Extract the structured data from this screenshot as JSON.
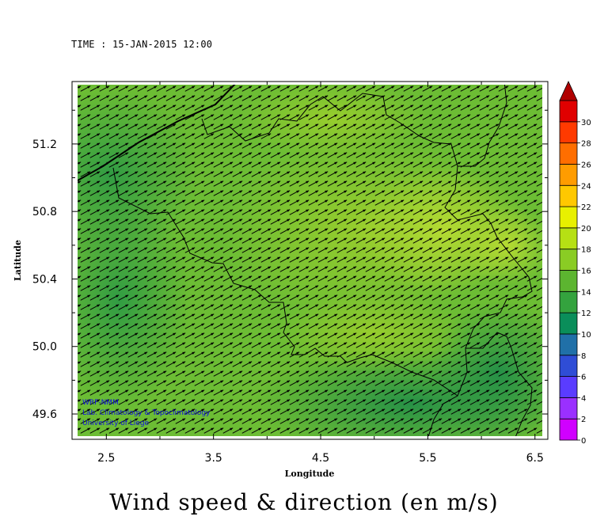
{
  "header": {
    "time_label": "TIME : 15-JAN-2015 12:00"
  },
  "footer": {
    "title": "Wind speed & direction (en m/s)"
  },
  "credits": {
    "line1": "WRF-NMM",
    "line2": "Lab. Climatology & Topoclimatology",
    "line3": "University of Liege"
  },
  "map": {
    "xlabel": "Longitude",
    "ylabel": "Latitude",
    "x_ticks": [
      "2.5",
      "3.5",
      "4.5",
      "5.5",
      "6.5"
    ],
    "y_ticks": [
      "51.2",
      "50.8",
      "50.4",
      "50.0",
      "49.6"
    ],
    "x_range": [
      2.18,
      6.62
    ],
    "y_range": [
      49.45,
      51.57
    ],
    "colorbar_ticks": [
      "0",
      "2",
      "4",
      "6",
      "8",
      "10",
      "12",
      "14",
      "16",
      "18",
      "20",
      "22",
      "24",
      "26",
      "28",
      "30"
    ],
    "colorbar_colors": [
      "#d000ff",
      "#9a30ff",
      "#5a3cff",
      "#2f4dd6",
      "#2070a8",
      "#0a8e5a",
      "#34a33e",
      "#5cb530",
      "#8acc24",
      "#b6e014",
      "#e8f000",
      "#ffc800",
      "#ff9c00",
      "#ff6e00",
      "#ff3a00",
      "#e00000"
    ],
    "colorbar_overflow_color": "#b00000"
  }
}
